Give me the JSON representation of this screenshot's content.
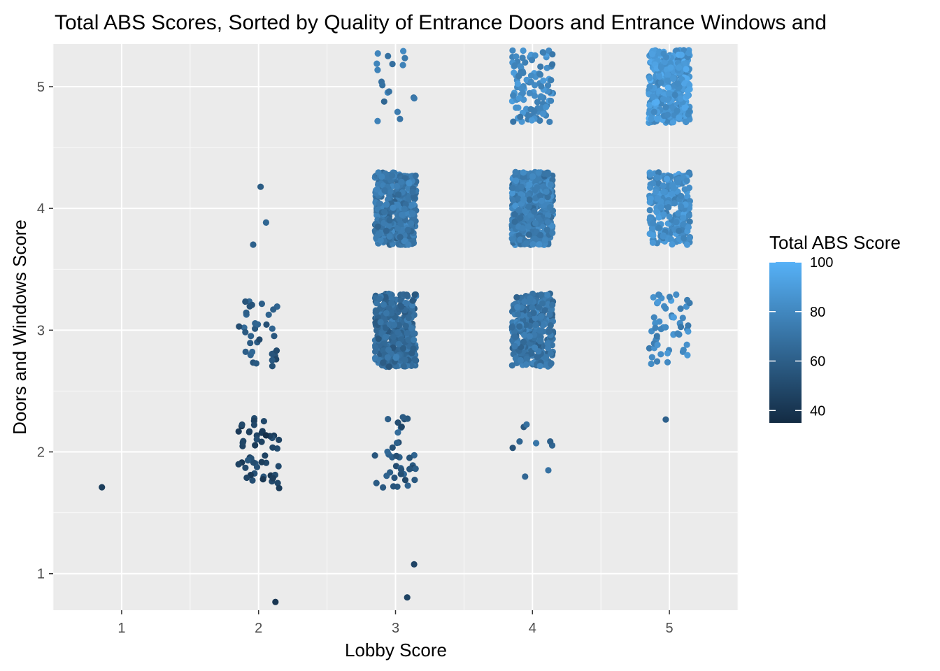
{
  "chart_data": {
    "type": "scatter",
    "title": "Total ABS Scores, Sorted by Quality of Entrance Doors and Entrance Windows and",
    "xlabel": "Lobby Score",
    "ylabel": "Doors and Windows Score",
    "xlim": [
      0.5,
      5.5
    ],
    "ylim": [
      0.7,
      5.35
    ],
    "x_ticks": [
      "1",
      "2",
      "3",
      "4",
      "5"
    ],
    "y_ticks": [
      "1",
      "2",
      "3",
      "4",
      "5"
    ],
    "grid": true,
    "jitter": {
      "x": 0.15,
      "y": 0.3
    },
    "legend": {
      "title": "Total ABS Score",
      "placement": "right",
      "labels": [
        "100",
        "80",
        "60",
        "40"
      ],
      "range": [
        35,
        100
      ],
      "color_low": "#132B43",
      "color_high": "#56B1F7"
    },
    "groups": [
      {
        "lobby": 1,
        "doors_windows": 1,
        "count": 0,
        "mean_score": 0
      },
      {
        "lobby": 1,
        "doors_windows": 2,
        "count": 1,
        "mean_score": 42
      },
      {
        "lobby": 2,
        "doors_windows": 1,
        "count": 1,
        "mean_score": 40
      },
      {
        "lobby": 2,
        "doors_windows": 2,
        "count": 50,
        "mean_score": 47
      },
      {
        "lobby": 2,
        "doors_windows": 3,
        "count": 36,
        "mean_score": 57
      },
      {
        "lobby": 2,
        "doors_windows": 4,
        "count": 3,
        "mean_score": 62
      },
      {
        "lobby": 3,
        "doors_windows": 1,
        "count": 2,
        "mean_score": 48
      },
      {
        "lobby": 3,
        "doors_windows": 2,
        "count": 38,
        "mean_score": 57
      },
      {
        "lobby": 3,
        "doors_windows": 3,
        "count": 420,
        "mean_score": 66
      },
      {
        "lobby": 3,
        "doors_windows": 4,
        "count": 400,
        "mean_score": 72
      },
      {
        "lobby": 3,
        "doors_windows": 5,
        "count": 18,
        "mean_score": 74
      },
      {
        "lobby": 4,
        "doors_windows": 2,
        "count": 9,
        "mean_score": 62
      },
      {
        "lobby": 4,
        "doors_windows": 3,
        "count": 330,
        "mean_score": 71
      },
      {
        "lobby": 4,
        "doors_windows": 4,
        "count": 520,
        "mean_score": 76
      },
      {
        "lobby": 4,
        "doors_windows": 5,
        "count": 110,
        "mean_score": 80
      },
      {
        "lobby": 5,
        "doors_windows": 2,
        "count": 1,
        "mean_score": 65
      },
      {
        "lobby": 5,
        "doors_windows": 3,
        "count": 55,
        "mean_score": 80
      },
      {
        "lobby": 5,
        "doors_windows": 4,
        "count": 260,
        "mean_score": 83
      },
      {
        "lobby": 5,
        "doors_windows": 5,
        "count": 420,
        "mean_score": 88
      }
    ]
  }
}
